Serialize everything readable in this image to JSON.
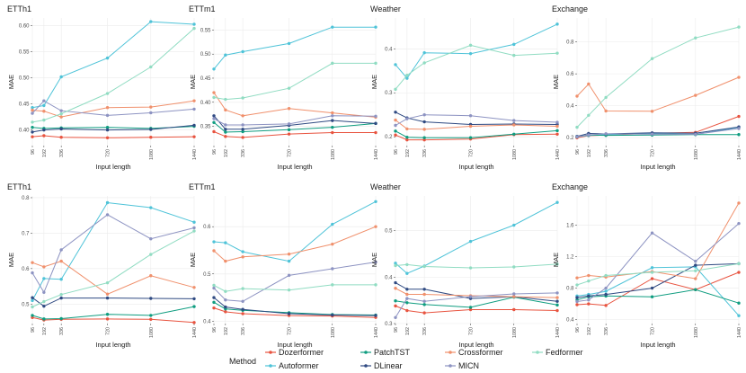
{
  "chart_data": {
    "type": "line",
    "x_label": "Input length",
    "y_label": "MAE",
    "x": [
      96,
      192,
      336,
      720,
      1080,
      1440
    ],
    "legend": {
      "title": "Method",
      "entries": [
        {
          "name": "Dozerformer",
          "color": "#e8533f"
        },
        {
          "name": "Autoformer",
          "color": "#4ec3d8"
        },
        {
          "name": "PatchTST",
          "color": "#0f9d80"
        },
        {
          "name": "DLinear",
          "color": "#2f4a82"
        },
        {
          "name": "Crossformer",
          "color": "#f0906c"
        },
        {
          "name": "MICN",
          "color": "#8d93c2"
        },
        {
          "name": "Fedformer",
          "color": "#90dcc2"
        }
      ]
    },
    "panels": [
      {
        "title": "ETTh1",
        "ylim": [
          0.37,
          0.615
        ],
        "yticks": [
          0.4,
          0.45,
          0.5,
          0.55,
          0.6
        ],
        "ytick_labels": [
          "0.40",
          "0.45",
          "0.50",
          "0.55",
          "0.60"
        ],
        "series": {
          "Dozerformer": [
            0.387,
            0.389,
            0.386,
            0.385,
            0.386,
            0.387
          ],
          "Autoformer": [
            0.443,
            0.447,
            0.502,
            0.538,
            0.608,
            0.603
          ],
          "PatchTST": [
            0.405,
            0.403,
            0.404,
            0.405,
            0.403,
            0.407
          ],
          "DLinear": [
            0.396,
            0.4,
            0.402,
            0.4,
            0.401,
            0.409
          ],
          "Crossformer": [
            0.438,
            0.436,
            0.425,
            0.443,
            0.444,
            0.456
          ],
          "MICN": [
            0.432,
            0.456,
            0.437,
            0.428,
            0.433,
            0.44
          ],
          "Fedformer": [
            0.415,
            0.419,
            0.431,
            0.47,
            0.521,
            0.595
          ]
        }
      },
      {
        "title": "ETTm1",
        "ylim": [
          0.31,
          0.575
        ],
        "yticks": [
          0.35,
          0.4,
          0.45,
          0.5,
          0.55
        ],
        "ytick_labels": [
          "0.35",
          "0.40",
          "0.45",
          "0.50",
          "0.55"
        ],
        "series": {
          "Dozerformer": [
            0.339,
            0.329,
            0.327,
            0.334,
            0.337,
            0.337
          ],
          "Autoformer": [
            0.469,
            0.498,
            0.505,
            0.522,
            0.556,
            0.556
          ],
          "PatchTST": [
            0.358,
            0.338,
            0.339,
            0.343,
            0.348,
            0.356
          ],
          "DLinear": [
            0.372,
            0.344,
            0.344,
            0.352,
            0.362,
            0.356
          ],
          "Crossformer": [
            0.42,
            0.384,
            0.372,
            0.387,
            0.378,
            0.369
          ],
          "MICN": [
            0.366,
            0.353,
            0.353,
            0.355,
            0.372,
            0.371
          ],
          "Fedformer": [
            0.41,
            0.406,
            0.409,
            0.429,
            0.481,
            0.481
          ]
        }
      },
      {
        "title": "Weather",
        "ylim": [
          0.18,
          0.47
        ],
        "yticks": [
          0.2,
          0.3,
          0.4
        ],
        "ytick_labels": [
          "0.2",
          "0.3",
          "0.4"
        ],
        "series": {
          "Dozerformer": [
            0.204,
            0.193,
            0.193,
            0.195,
            0.205,
            0.206
          ],
          "Autoformer": [
            0.364,
            0.333,
            0.391,
            0.389,
            0.41,
            0.456
          ],
          "PatchTST": [
            0.213,
            0.199,
            0.198,
            0.198,
            0.206,
            0.214
          ],
          "DLinear": [
            0.256,
            0.243,
            0.234,
            0.228,
            0.229,
            0.228
          ],
          "Crossformer": [
            0.238,
            0.218,
            0.217,
            0.224,
            0.227,
            0.224
          ],
          "MICN": [
            0.226,
            0.241,
            0.25,
            0.248,
            0.237,
            0.233
          ],
          "Fedformer": [
            0.308,
            0.34,
            0.368,
            0.408,
            0.385,
            0.39
          ]
        }
      },
      {
        "title": "Exchange",
        "ylim": [
          0.15,
          0.95
        ],
        "yticks": [
          0.2,
          0.4,
          0.6,
          0.8
        ],
        "ytick_labels": [
          "0.2",
          "0.4",
          "0.6",
          "0.8"
        ],
        "series": {
          "Dozerformer": [
            0.199,
            0.212,
            0.216,
            0.228,
            0.233,
            0.333
          ],
          "Autoformer": [
            0.205,
            0.213,
            0.219,
            0.226,
            0.22,
            0.265
          ],
          "PatchTST": [
            0.208,
            0.216,
            0.214,
            0.216,
            0.219,
            0.219
          ],
          "DLinear": [
            0.208,
            0.226,
            0.223,
            0.23,
            0.228,
            0.267
          ],
          "Crossformer": [
            0.46,
            0.536,
            0.367,
            0.365,
            0.465,
            0.578
          ],
          "MICN": [
            0.206,
            0.217,
            0.224,
            0.222,
            0.221,
            0.257
          ],
          "Fedformer": [
            0.265,
            0.34,
            0.452,
            0.695,
            0.825,
            0.893
          ]
        }
      },
      {
        "title": "ETTh1",
        "ylim": [
          0.445,
          0.805
        ],
        "yticks": [
          0.5,
          0.6,
          0.7,
          0.8
        ],
        "ytick_labels": [
          "0.5",
          "0.6",
          "0.7",
          "0.8"
        ],
        "series": {
          "Dozerformer": [
            0.462,
            0.455,
            0.457,
            0.458,
            0.457,
            0.448
          ],
          "Autoformer": [
            0.51,
            0.572,
            0.57,
            0.786,
            0.772,
            0.731
          ],
          "PatchTST": [
            0.468,
            0.458,
            0.459,
            0.471,
            0.468,
            0.493
          ],
          "DLinear": [
            0.518,
            0.494,
            0.517,
            0.517,
            0.516,
            0.515
          ],
          "Crossformer": [
            0.617,
            0.605,
            0.621,
            0.528,
            0.58,
            0.547
          ],
          "MICN": [
            0.588,
            0.533,
            0.653,
            0.752,
            0.684,
            0.715
          ],
          "Fedformer": [
            0.492,
            0.507,
            0.527,
            0.56,
            0.64,
            0.706
          ]
        }
      },
      {
        "title": "ETTm1",
        "ylim": [
          0.395,
          0.665
        ],
        "yticks": [
          0.4,
          0.5,
          0.6
        ],
        "ytick_labels": [
          "0.4",
          "0.5",
          "0.6"
        ],
        "series": {
          "Dozerformer": [
            0.428,
            0.42,
            0.416,
            0.412,
            0.411,
            0.408
          ],
          "Autoformer": [
            0.568,
            0.566,
            0.547,
            0.527,
            0.605,
            0.653
          ],
          "PatchTST": [
            0.44,
            0.426,
            0.423,
            0.418,
            0.414,
            0.413
          ],
          "DLinear": [
            0.45,
            0.43,
            0.425,
            0.416,
            0.413,
            0.412
          ],
          "Crossformer": [
            0.549,
            0.527,
            0.536,
            0.542,
            0.563,
            0.6
          ],
          "MICN": [
            0.47,
            0.445,
            0.442,
            0.497,
            0.511,
            0.525
          ],
          "Fedformer": [
            0.476,
            0.463,
            0.469,
            0.466,
            0.477,
            0.477
          ]
        }
      },
      {
        "title": "Weather",
        "ylim": [
          0.3,
          0.575
        ],
        "yticks": [
          0.3,
          0.4,
          0.5
        ],
        "ytick_labels": [
          "0.3",
          "0.4",
          "0.5"
        ],
        "series": {
          "Dozerformer": [
            0.338,
            0.328,
            0.323,
            0.33,
            0.33,
            0.328
          ],
          "Autoformer": [
            0.43,
            0.408,
            0.424,
            0.477,
            0.512,
            0.561
          ],
          "PatchTST": [
            0.349,
            0.345,
            0.341,
            0.335,
            0.357,
            0.34
          ],
          "DLinear": [
            0.388,
            0.374,
            0.374,
            0.354,
            0.358,
            0.348
          ],
          "Crossformer": [
            0.376,
            0.363,
            0.363,
            0.36,
            0.358,
            0.356
          ],
          "MICN": [
            0.313,
            0.354,
            0.348,
            0.358,
            0.364,
            0.366
          ],
          "Fedformer": [
            0.425,
            0.427,
            0.423,
            0.42,
            0.422,
            0.428
          ]
        }
      },
      {
        "title": "Exchange",
        "ylim": [
          0.35,
          1.97
        ],
        "yticks": [
          0.4,
          0.8,
          1.2,
          1.6
        ],
        "ytick_labels": [
          "0.4",
          "0.8",
          "1.2",
          "1.6"
        ],
        "series": {
          "Dozerformer": [
            0.59,
            0.6,
            0.58,
            0.92,
            0.78,
            1.0
          ],
          "Autoformer": [
            0.7,
            0.72,
            0.76,
            1.06,
            1.07,
            0.45
          ],
          "PatchTST": [
            0.65,
            0.69,
            0.7,
            0.69,
            0.78,
            0.61
          ],
          "DLinear": [
            0.68,
            0.7,
            0.72,
            0.8,
            1.09,
            1.11
          ],
          "Crossformer": [
            0.93,
            0.96,
            0.94,
            1.01,
            0.92,
            1.88
          ],
          "MICN": [
            0.63,
            0.65,
            0.8,
            1.5,
            1.14,
            1.62
          ],
          "Fedformer": [
            0.84,
            0.89,
            0.96,
            1.0,
            1.02,
            1.11
          ]
        }
      }
    ]
  }
}
